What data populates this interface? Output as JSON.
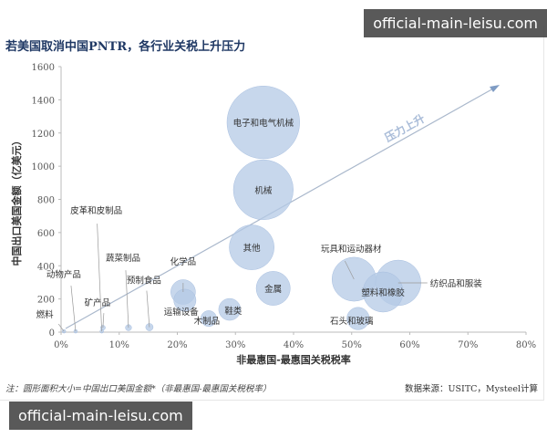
{
  "watermark_top": "official-main-leisu.com",
  "watermark_bottom": "official-main-leisu.com",
  "chart_data": {
    "type": "scatter",
    "subtype": "bubble",
    "title": "若美国取消中国PNTR，各行业关税上升压力",
    "xlabel": "非最惠国-最惠国关税税率",
    "ylabel": "中国出口美国金额（亿美元）",
    "xlim": [
      0,
      80
    ],
    "ylim": [
      0,
      1600
    ],
    "xticks": [
      "0%",
      "10%",
      "20%",
      "30%",
      "40%",
      "50%",
      "60%",
      "70%",
      "80%"
    ],
    "yticks": [
      "0",
      "200",
      "400",
      "600",
      "800",
      "1000",
      "1200",
      "1400",
      "1600"
    ],
    "grid": false,
    "arrow_label": "压力上升",
    "note": "注：圆形面积大小=中国出口美国金额*（非最惠国-最惠国关税税率）",
    "source": "数据来源：USITC，Mysteel计算",
    "bubble_color": "#b4c9e6",
    "points": [
      {
        "label": "电子和电气机械",
        "x": 34.8,
        "y": 1264
      },
      {
        "label": "机械",
        "x": 34.8,
        "y": 858
      },
      {
        "label": "其他",
        "x": 32.8,
        "y": 511
      },
      {
        "label": "金属",
        "x": 36.5,
        "y": 264
      },
      {
        "label": "化学品",
        "x": 21.0,
        "y": 242
      },
      {
        "label": "运输设备",
        "x": 21.3,
        "y": 192
      },
      {
        "label": "鞋类",
        "x": 29.0,
        "y": 137
      },
      {
        "label": "木制品",
        "x": 25.4,
        "y": 82
      },
      {
        "label": "矿产品",
        "x": 7.2,
        "y": 27
      },
      {
        "label": "蔬菜制品",
        "x": 11.6,
        "y": 27
      },
      {
        "label": "预制食品",
        "x": 15.2,
        "y": 30
      },
      {
        "label": "皮革和皮制品",
        "x": 7.0,
        "y": 5
      },
      {
        "label": "动物产品",
        "x": 2.5,
        "y": 5
      },
      {
        "label": "燃料",
        "x": 0.5,
        "y": 5
      },
      {
        "label": "玩具和运动器材",
        "x": 50.4,
        "y": 319
      },
      {
        "label": "纺织品和服装",
        "x": 58.0,
        "y": 297
      },
      {
        "label": "塑料和橡胶",
        "x": 55.4,
        "y": 242
      },
      {
        "label": "石头和玻璃",
        "x": 51.1,
        "y": 82
      }
    ]
  }
}
